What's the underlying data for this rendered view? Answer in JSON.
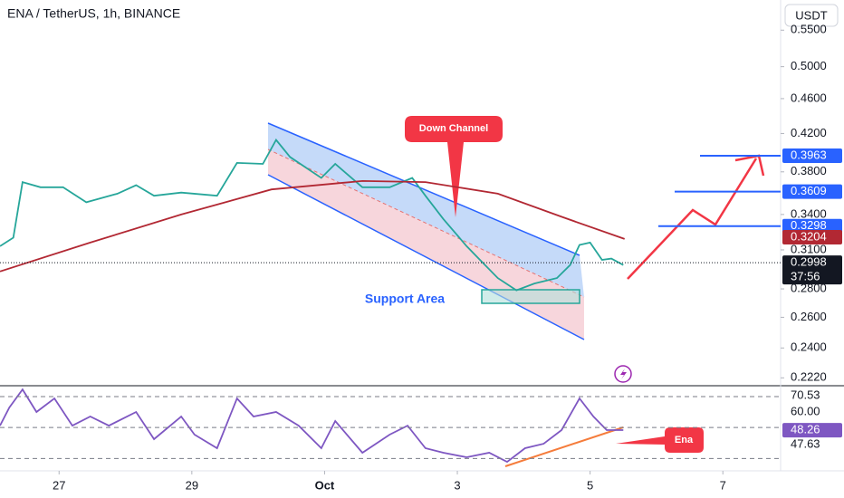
{
  "chart_data": [
    {
      "type": "line",
      "title": "ENA / TetherUS, 1h, BINANCE",
      "currency": "USDT",
      "log": true,
      "xlim": [
        26.11,
        37.87
      ],
      "xticks": [
        {
          "value": 27,
          "label": "27"
        },
        {
          "value": 29,
          "label": "29"
        },
        {
          "value": 31,
          "label": "Oct"
        },
        {
          "value": 33,
          "label": "3"
        },
        {
          "value": 35,
          "label": "5"
        },
        {
          "value": 37,
          "label": "7"
        }
      ],
      "ylim": [
        0.218,
        0.595
      ],
      "yticks": [
        {
          "value": 0.55,
          "label": "0.5500"
        },
        {
          "value": 0.5,
          "label": "0.5000"
        },
        {
          "value": 0.46,
          "label": "0.4600"
        },
        {
          "value": 0.42,
          "label": "0.4200"
        },
        {
          "value": 0.38,
          "label": "0.3800"
        },
        {
          "value": 0.34,
          "label": "0.3400"
        },
        {
          "value": 0.31,
          "label": "0.3100"
        },
        {
          "value": 0.28,
          "label": "0.2800"
        },
        {
          "value": 0.26,
          "label": "0.2600"
        },
        {
          "value": 0.24,
          "label": "0.2400"
        },
        {
          "value": 0.222,
          "label": "0.2220"
        }
      ],
      "series": [
        {
          "color": "#26a69a",
          "x": [
            26.11,
            26.31,
            26.45,
            26.72,
            27.06,
            27.41,
            27.88,
            28.16,
            28.43,
            28.84,
            29.38,
            29.68,
            30.07,
            30.27,
            30.48,
            30.95,
            31.16,
            31.57,
            31.98,
            32.32,
            32.52,
            32.79,
            33.14,
            33.34,
            33.61,
            33.89,
            34.16,
            34.5,
            34.7,
            34.84,
            35.0,
            35.18,
            35.32,
            35.5
          ],
          "values": [
            0.313,
            0.32,
            0.37,
            0.365,
            0.365,
            0.351,
            0.359,
            0.367,
            0.357,
            0.36,
            0.357,
            0.389,
            0.388,
            0.413,
            0.395,
            0.374,
            0.388,
            0.365,
            0.365,
            0.374,
            0.357,
            0.336,
            0.313,
            0.302,
            0.288,
            0.279,
            0.284,
            0.288,
            0.298,
            0.314,
            0.316,
            0.302,
            0.303,
            0.298
          ]
        },
        {
          "color": "#b22833",
          "x": [
            26.11,
            27.47,
            28.84,
            30.2,
            31.57,
            32.52,
            33.61,
            34.57,
            35.52
          ],
          "values": [
            0.293,
            0.316,
            0.34,
            0.363,
            0.371,
            0.37,
            0.359,
            0.338,
            0.319
          ]
        }
      ],
      "levels": [
        0.3963,
        0.3609,
        0.3298
      ],
      "level_color": "#2962ff",
      "ma_price": 0.3204,
      "last_price": 0.2998,
      "countdown": "37:56",
      "annotations": [
        "Down Channel",
        "Support Area",
        "Ena"
      ]
    },
    {
      "type": "line",
      "ylim": [
        22,
        76.4
      ],
      "levels": [
        70,
        50,
        30
      ],
      "series": [
        {
          "color": "#7e57c2",
          "x": [
            26.11,
            26.25,
            26.45,
            26.66,
            26.93,
            27.2,
            27.47,
            27.75,
            28.16,
            28.43,
            28.84,
            29.04,
            29.38,
            29.68,
            29.93,
            30.27,
            30.61,
            30.95,
            31.16,
            31.57,
            31.98,
            32.25,
            32.52,
            32.79,
            33.14,
            33.48,
            33.75,
            34.02,
            34.3,
            34.57,
            34.84,
            35.05,
            35.25,
            35.5
          ],
          "values": [
            51.2,
            62.9,
            74.6,
            60.0,
            68.8,
            51.2,
            57.1,
            51.2,
            60.0,
            42.5,
            57.1,
            45.4,
            36.6,
            68.8,
            57.1,
            60.0,
            51.2,
            36.6,
            54.2,
            33.7,
            45.4,
            51.2,
            36.6,
            33.7,
            30.8,
            33.7,
            27.8,
            36.6,
            39.5,
            48.3,
            68.8,
            57.1,
            48.3,
            48.3
          ]
        }
      ],
      "tags": [
        70.53,
        {
          "value": 60,
          "label": "60.00"
        },
        48.26,
        47.63
      ]
    }
  ]
}
